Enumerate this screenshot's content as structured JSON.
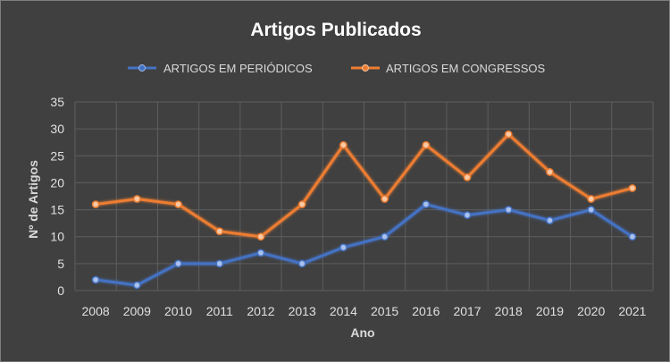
{
  "chart_data": {
    "type": "line",
    "title": "Artigos Publicados",
    "xlabel": "Ano",
    "ylabel": "Nº de Artigos",
    "categories": [
      "2008",
      "2009",
      "2010",
      "2011",
      "2012",
      "2013",
      "2014",
      "2015",
      "2016",
      "2017",
      "2018",
      "2019",
      "2020",
      "2021"
    ],
    "ylim": [
      0,
      35
    ],
    "yticks": [
      "0",
      "5",
      "10",
      "15",
      "20",
      "25",
      "30",
      "35"
    ],
    "grid": true,
    "legend_position": "top",
    "series": [
      {
        "name": "ARTIGOS EM PERIÓDICOS",
        "color": "#4472c4",
        "values": [
          2,
          1,
          5,
          5,
          7,
          5,
          8,
          10,
          16,
          14,
          15,
          13,
          15,
          10
        ]
      },
      {
        "name": "ARTIGOS EM CONGRESSOS",
        "color": "#ed7d31",
        "values": [
          16,
          17,
          16,
          11,
          10,
          16,
          27,
          17,
          27,
          21,
          29,
          22,
          17,
          19
        ]
      }
    ]
  }
}
